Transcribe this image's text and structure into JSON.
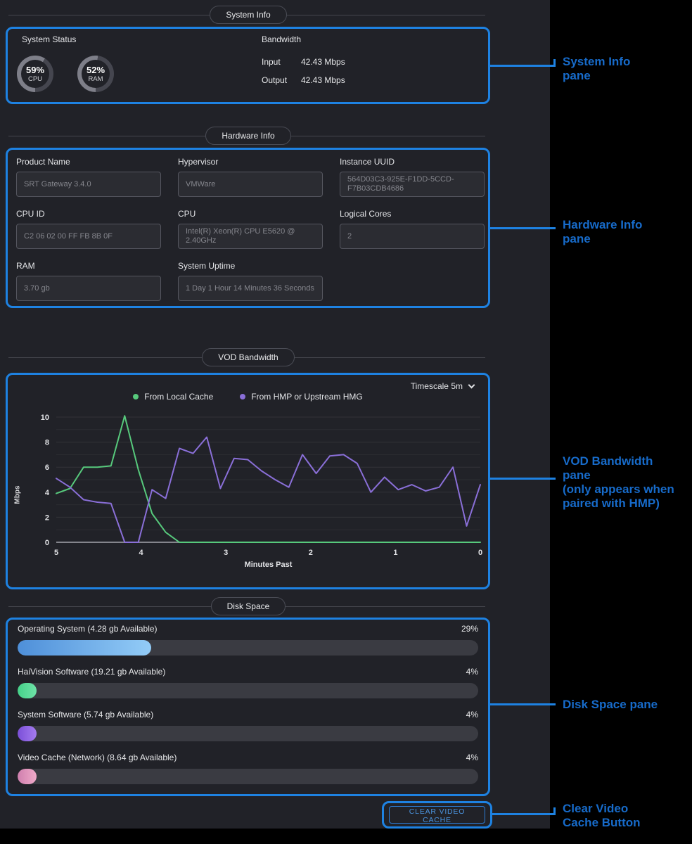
{
  "colors": {
    "accent_blue": "#1e82e2",
    "annotation_blue": "#176bca",
    "green_series": "#57c97c",
    "purple_series": "#8a6fd8"
  },
  "sections": {
    "system_info": {
      "header": "System Info",
      "system_status_label": "System Status",
      "gauges": [
        {
          "percent": 59,
          "value_label": "59%",
          "label": "CPU"
        },
        {
          "percent": 52,
          "value_label": "52%",
          "label": "RAM"
        }
      ],
      "bandwidth": {
        "label": "Bandwidth",
        "rows": [
          {
            "label": "Input",
            "value": "42.43 Mbps"
          },
          {
            "label": "Output",
            "value": "42.43 Mbps"
          }
        ]
      }
    },
    "hardware_info": {
      "header": "Hardware Info",
      "fields": [
        {
          "label": "Product Name",
          "value": "SRT Gateway 3.4.0"
        },
        {
          "label": "Hypervisor",
          "value": "VMWare"
        },
        {
          "label": "Instance UUID",
          "value": "564D03C3-925E-F1DD-5CCD-F7B03CDB4686"
        },
        {
          "label": "CPU ID",
          "value": "C2 06 02 00 FF FB 8B 0F"
        },
        {
          "label": "CPU",
          "value": "Intel(R) Xeon(R) CPU E5620 @ 2.40GHz"
        },
        {
          "label": "Logical Cores",
          "value": "2"
        },
        {
          "label": "RAM",
          "value": "3.70 gb"
        },
        {
          "label": "System Uptime",
          "value": "1 Day 1 Hour 14 Minutes 36 Seconds"
        }
      ]
    },
    "vod_bandwidth": {
      "header": "VOD Bandwidth",
      "timescale_label": "Timescale 5m"
    },
    "disk_space": {
      "header": "Disk Space",
      "rows": [
        {
          "label": "Operating System (4.28 gb Available)",
          "percent_label": "29%",
          "percent": 29,
          "gradient": [
            "#4e8fd9",
            "#93ccf7"
          ]
        },
        {
          "label": "HaiVision Software (19.21 gb Available)",
          "percent_label": "4%",
          "percent": 4,
          "gradient": [
            "#45d189",
            "#6fe3a8"
          ]
        },
        {
          "label": "System Software (5.74 gb Available)",
          "percent_label": "4%",
          "percent": 4,
          "gradient": [
            "#7b4fd8",
            "#a57cf0"
          ]
        },
        {
          "label": "Video Cache (Network) (8.64 gb Available)",
          "percent_label": "4%",
          "percent": 4,
          "gradient": [
            "#cf7fae",
            "#f0aac9"
          ]
        }
      ]
    },
    "clear_cache_button_label": "CLEAR VIDEO CACHE"
  },
  "chart_data": {
    "type": "line",
    "title": "VOD Bandwidth",
    "xlabel": "Minutes Past",
    "ylabel": "Mbps",
    "xlim": [
      5,
      0
    ],
    "ylim": [
      0,
      10
    ],
    "xticks": [
      5,
      4,
      3,
      2,
      1,
      0
    ],
    "yticks": [
      0,
      2,
      4,
      6,
      8,
      10
    ],
    "grid": true,
    "legend_position": "top",
    "x_axis_note": "x values are uniformly spaced from 5 down to 0 minutes past",
    "series": [
      {
        "name": "From Local Cache",
        "color": "#57c97c",
        "values": [
          3.9,
          4.3,
          6.0,
          6.0,
          6.1,
          10.1,
          5.8,
          2.3,
          0.8,
          0,
          0,
          0,
          0,
          0,
          0,
          0,
          0,
          0,
          0,
          0,
          0,
          0,
          0,
          0,
          0,
          0,
          0,
          0,
          0,
          0,
          0,
          0
        ]
      },
      {
        "name": "From HMP or Upstream HMG",
        "color": "#8a6fd8",
        "values": [
          5.1,
          4.4,
          3.4,
          3.2,
          3.1,
          0,
          0,
          4.2,
          3.5,
          7.5,
          7.1,
          8.4,
          4.3,
          6.7,
          6.6,
          5.7,
          5.0,
          4.4,
          7.0,
          5.5,
          6.9,
          7.0,
          6.3,
          4.0,
          5.2,
          4.2,
          4.6,
          4.1,
          4.4,
          6.0,
          1.3,
          4.6
        ]
      }
    ]
  },
  "annotations": [
    {
      "lines": [
        "System Info",
        "pane"
      ]
    },
    {
      "lines": [
        "Hardware Info",
        "pane"
      ]
    },
    {
      "lines": [
        "VOD Bandwidth",
        "pane",
        "(only appears when",
        "paired with HMP)"
      ]
    },
    {
      "lines": [
        "Disk Space pane"
      ]
    },
    {
      "lines": [
        "Clear Video",
        "Cache Button"
      ]
    }
  ]
}
